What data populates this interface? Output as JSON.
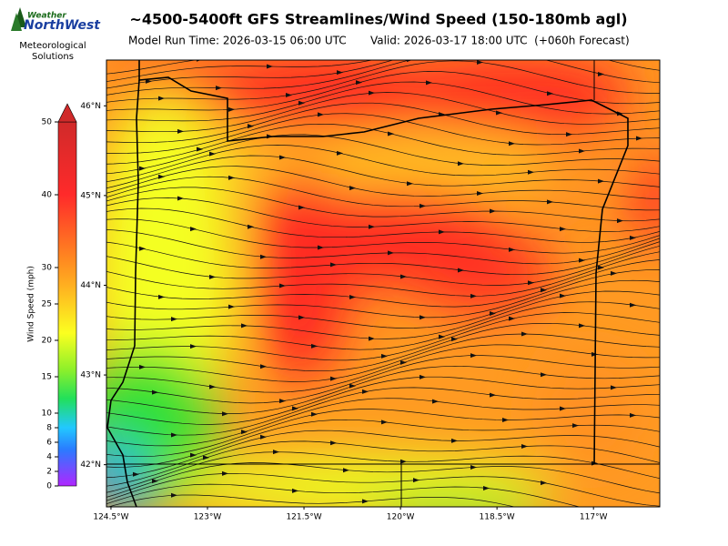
{
  "header": {
    "title": "~4500-5400ft GFS Streamlines/Wind Speed (150-180mb agl)",
    "model_run": "Model Run Time: 2026-03-15 06:00 UTC",
    "valid": "Valid: 2026-03-17 18:00 UTC  (+060h Forecast)"
  },
  "logo": {
    "brand_top": "Weather",
    "brand_bottom": "NorthWest",
    "tagline_1": "Meteorological",
    "tagline_2": "Solutions"
  },
  "colorbar": {
    "label": "Wind Speed (mph)",
    "lim": [
      0,
      50
    ],
    "ticks": [
      0,
      2,
      4,
      6,
      8,
      10,
      15,
      20,
      25,
      30,
      40,
      50
    ]
  },
  "map": {
    "xlim": [
      -124.57,
      -115.97
    ],
    "ylim": [
      41.53,
      46.51
    ],
    "xticks": [
      {
        "value": -124.5,
        "label": "124.5°W"
      },
      {
        "value": -123,
        "label": "123°W"
      },
      {
        "value": -121.5,
        "label": "121.5°W"
      },
      {
        "value": -120,
        "label": "120°W"
      },
      {
        "value": -118.5,
        "label": "118.5°W"
      },
      {
        "value": -117,
        "label": "117°W"
      }
    ],
    "yticks": [
      {
        "value": 46,
        "label": "46°N"
      },
      {
        "value": 45,
        "label": "45°N"
      },
      {
        "value": 44,
        "label": "44°N"
      },
      {
        "value": 43,
        "label": "43°N"
      },
      {
        "value": 42,
        "label": "42°N"
      }
    ]
  }
}
